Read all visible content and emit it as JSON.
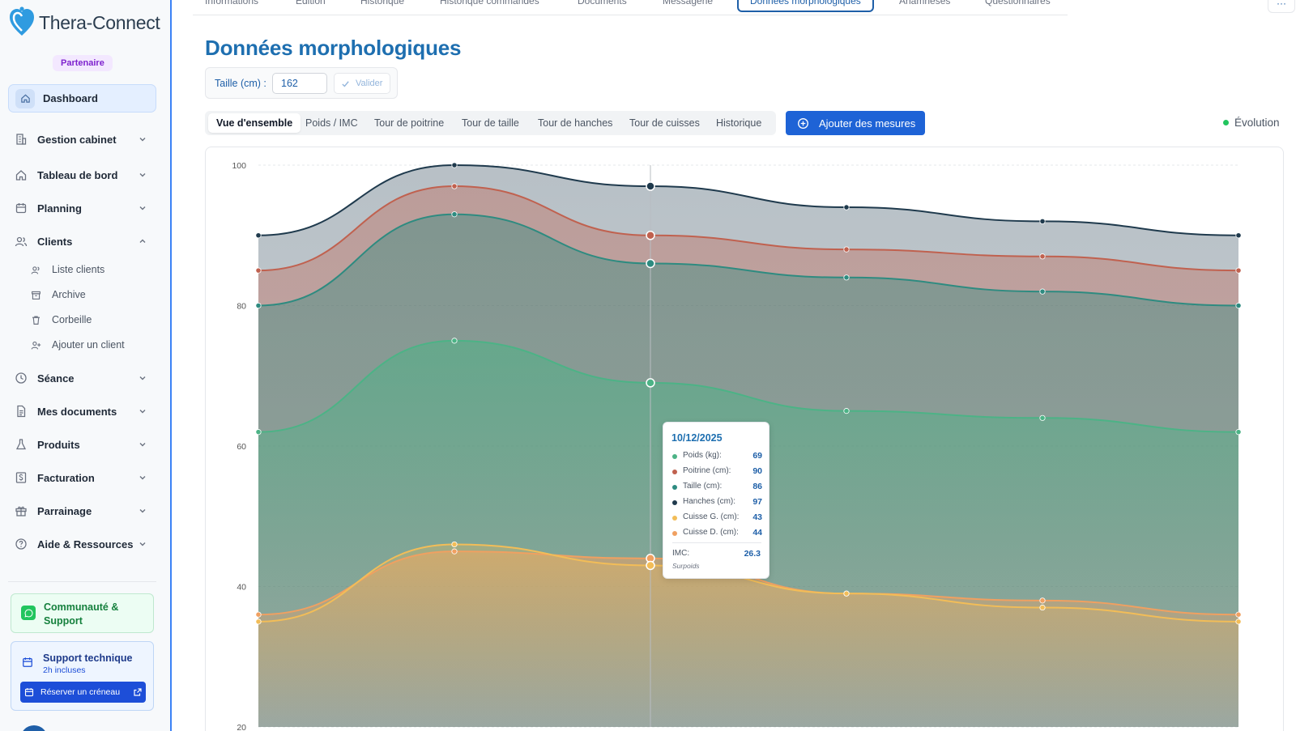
{
  "sidebar": {
    "logo_text": "Thera-Connect",
    "badge": "Partenaire",
    "dashboard_label": "Dashboard",
    "items": [
      {
        "label": "Gestion cabinet",
        "icon": "building-icon"
      },
      {
        "label": "Tableau de bord",
        "icon": "home-icon"
      },
      {
        "label": "Planning",
        "icon": "calendar-icon"
      },
      {
        "label": "Clients",
        "icon": "users-icon"
      },
      {
        "label": "Séance",
        "icon": "clock-icon"
      },
      {
        "label": "Mes documents",
        "icon": "document-icon"
      },
      {
        "label": "Produits",
        "icon": "flask-icon"
      },
      {
        "label": "Facturation",
        "icon": "dollar-icon"
      },
      {
        "label": "Parrainage",
        "icon": "gift-icon"
      },
      {
        "label": "Aide & Ressources",
        "icon": "help-icon"
      }
    ],
    "client_subitems": [
      {
        "label": "Liste clients",
        "icon": "users-icon"
      },
      {
        "label": "Archive",
        "icon": "archive-icon"
      },
      {
        "label": "Corbeille",
        "icon": "trash-icon"
      },
      {
        "label": "Ajouter un client",
        "icon": "user-plus-icon"
      }
    ],
    "community_label": "Communauté & Support",
    "support": {
      "title": "Support technique",
      "subtitle": "2h incluses",
      "button_label": "Réserver un créneau"
    }
  },
  "tabs": [
    "Informations",
    "Édition",
    "Historique",
    "Historique commandes",
    "Documents",
    "Messagerie",
    "Données morphologiques",
    "Anamnèses",
    "Questionnaires"
  ],
  "active_tab": "Données morphologiques",
  "more_label": "···",
  "page_title": "Données morphologiques",
  "size_form": {
    "label": "Taille (cm) :",
    "value": "162",
    "validate_label": "Valider"
  },
  "subtabs": [
    "Vue d'ensemble",
    "Poids / IMC",
    "Tour de poitrine",
    "Tour de taille",
    "Tour de hanches",
    "Tour de cuisses",
    "Historique"
  ],
  "active_subtab": "Vue d'ensemble",
  "add_button_label": "Ajouter des mesures",
  "evolution_label": "Évolution",
  "colors": {
    "accent": "#1e6fb0",
    "primary_button": "#1e63d6",
    "hanches": "#1f3a4d",
    "poitrine": "#c0614f",
    "taille": "#2e8b80",
    "poids": "#4cb386",
    "cuisse_g": "#f2bd58",
    "cuisse_d": "#f0a061"
  },
  "chart_data": {
    "type": "area",
    "ylim": [
      20,
      100
    ],
    "y_ticks": [
      100,
      80,
      60,
      40,
      20
    ],
    "grid": true,
    "points_count": 6,
    "hover_index": 2,
    "series": [
      {
        "key": "hanches",
        "values": [
          90,
          100,
          97,
          94,
          92,
          90
        ]
      },
      {
        "key": "poitrine",
        "values": [
          85,
          97,
          90,
          88,
          87,
          85
        ]
      },
      {
        "key": "taille",
        "values": [
          80,
          93,
          86,
          84,
          82,
          80
        ]
      },
      {
        "key": "poids",
        "values": [
          62,
          75,
          69,
          65,
          64,
          62
        ]
      },
      {
        "key": "cuisse_d",
        "values": [
          36,
          45,
          44,
          39,
          38,
          36
        ]
      },
      {
        "key": "cuisse_g",
        "values": [
          35,
          46,
          43,
          39,
          37,
          35
        ]
      }
    ]
  },
  "tooltip": {
    "date": "10/12/2025",
    "rows": [
      {
        "label": "Poids (kg):",
        "value": "69",
        "color": "#4cb386"
      },
      {
        "label": "Poitrine (cm):",
        "value": "90",
        "color": "#c0614f"
      },
      {
        "label": "Taille (cm):",
        "value": "86",
        "color": "#2e8b80"
      },
      {
        "label": "Hanches (cm):",
        "value": "97",
        "color": "#1f3a4d"
      },
      {
        "label": "Cuisse G. (cm):",
        "value": "43",
        "color": "#f2bd58"
      },
      {
        "label": "Cuisse D. (cm):",
        "value": "44",
        "color": "#f0a061"
      }
    ],
    "imc_label": "IMC:",
    "imc_value": "26.3",
    "imc_status": "Surpoids"
  }
}
